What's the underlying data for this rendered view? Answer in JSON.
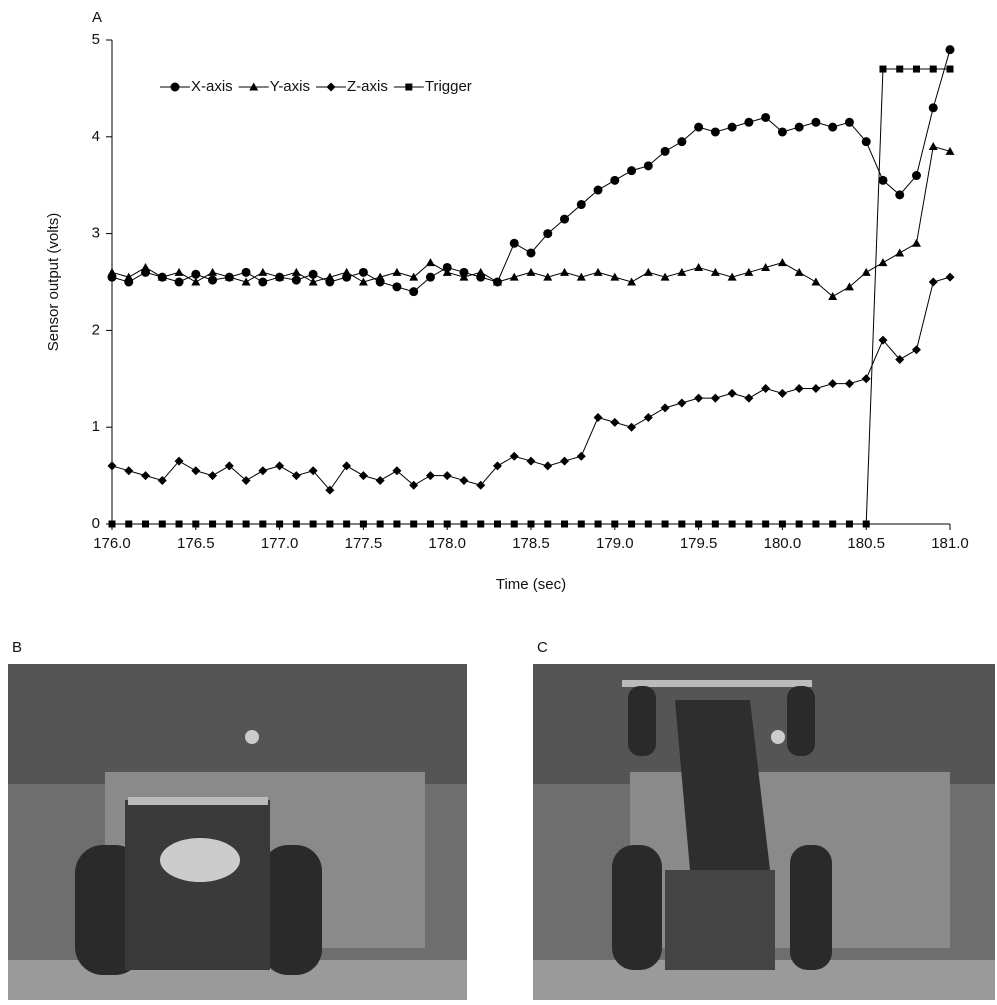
{
  "chart_data": {
    "type": "line",
    "panel_label": "A",
    "x_label": "Time (sec)",
    "y_label": "Sensor output (volts)",
    "x": [
      176,
      176.1,
      176.2,
      176.3,
      176.4,
      176.5,
      176.6,
      176.7,
      176.8,
      176.9,
      177,
      177.1,
      177.2,
      177.3,
      177.4,
      177.5,
      177.6,
      177.7,
      177.8,
      177.9,
      178,
      178.1,
      178.2,
      178.3,
      178.4,
      178.5,
      178.6,
      178.7,
      178.8,
      178.9,
      179,
      179.1,
      179.2,
      179.3,
      179.4,
      179.5,
      179.6,
      179.7,
      179.8,
      179.9,
      180,
      180.1,
      180.2,
      180.3,
      180.4,
      180.5,
      180.6,
      180.7,
      180.8,
      180.9,
      181
    ],
    "series": [
      {
        "name": "X-axis",
        "color": "#000000",
        "marker": "circle",
        "values": [
          2.55,
          2.5,
          2.6,
          2.55,
          2.5,
          2.58,
          2.52,
          2.55,
          2.6,
          2.5,
          2.55,
          2.52,
          2.58,
          2.5,
          2.55,
          2.6,
          2.5,
          2.45,
          2.4,
          2.55,
          2.65,
          2.6,
          2.55,
          2.5,
          2.9,
          2.8,
          3.0,
          3.15,
          3.3,
          3.45,
          3.55,
          3.65,
          3.7,
          3.85,
          3.95,
          4.1,
          4.05,
          4.1,
          4.15,
          4.2,
          4.05,
          4.1,
          4.15,
          4.1,
          4.15,
          3.95,
          3.55,
          3.4,
          3.6,
          4.3,
          4.9
        ]
      },
      {
        "name": "Y-axis",
        "color": "#000000",
        "marker": "triangle",
        "values": [
          2.6,
          2.55,
          2.65,
          2.55,
          2.6,
          2.5,
          2.6,
          2.55,
          2.5,
          2.6,
          2.55,
          2.6,
          2.5,
          2.55,
          2.6,
          2.5,
          2.55,
          2.6,
          2.55,
          2.7,
          2.6,
          2.55,
          2.6,
          2.5,
          2.55,
          2.6,
          2.55,
          2.6,
          2.55,
          2.6,
          2.55,
          2.5,
          2.6,
          2.55,
          2.6,
          2.65,
          2.6,
          2.55,
          2.6,
          2.65,
          2.7,
          2.6,
          2.5,
          2.35,
          2.45,
          2.6,
          2.7,
          2.8,
          2.9,
          3.9,
          3.85
        ]
      },
      {
        "name": "Z-axis",
        "color": "#000000",
        "marker": "diamond",
        "values": [
          0.6,
          0.55,
          0.5,
          0.45,
          0.65,
          0.55,
          0.5,
          0.6,
          0.45,
          0.55,
          0.6,
          0.5,
          0.55,
          0.35,
          0.6,
          0.5,
          0.45,
          0.55,
          0.4,
          0.5,
          0.5,
          0.45,
          0.4,
          0.6,
          0.7,
          0.65,
          0.6,
          0.65,
          0.7,
          1.1,
          1.05,
          1.0,
          1.1,
          1.2,
          1.25,
          1.3,
          1.3,
          1.35,
          1.3,
          1.4,
          1.35,
          1.4,
          1.4,
          1.45,
          1.45,
          1.5,
          1.9,
          1.7,
          1.8,
          2.5,
          2.55
        ]
      },
      {
        "name": "Trigger",
        "color": "#000000",
        "marker": "square",
        "values": [
          0,
          0,
          0,
          0,
          0,
          0,
          0,
          0,
          0,
          0,
          0,
          0,
          0,
          0,
          0,
          0,
          0,
          0,
          0,
          0,
          0,
          0,
          0,
          0,
          0,
          0,
          0,
          0,
          0,
          0,
          0,
          0,
          0,
          0,
          0,
          0,
          0,
          0,
          0,
          0,
          0,
          0,
          0,
          0,
          0,
          0,
          4.7,
          4.7,
          4.7,
          4.7,
          4.7
        ]
      }
    ],
    "xlim": [
      176,
      181
    ],
    "xticks": [
      {
        "value": 176,
        "label": "176.0"
      },
      176.5,
      {
        "value": 177,
        "label": "177.0"
      },
      177.5,
      {
        "value": 178,
        "label": "178.0"
      },
      178.5,
      {
        "value": 179,
        "label": "179.0"
      },
      179.5,
      {
        "value": 180,
        "label": "180.0"
      },
      180.5,
      {
        "value": 181,
        "label": "181.0"
      }
    ],
    "ylim": [
      0,
      5
    ],
    "yticks": [
      0,
      1,
      2,
      3,
      4,
      5
    ],
    "grid": false
  },
  "photos": [
    {
      "label": "B"
    },
    {
      "label": "C"
    }
  ]
}
